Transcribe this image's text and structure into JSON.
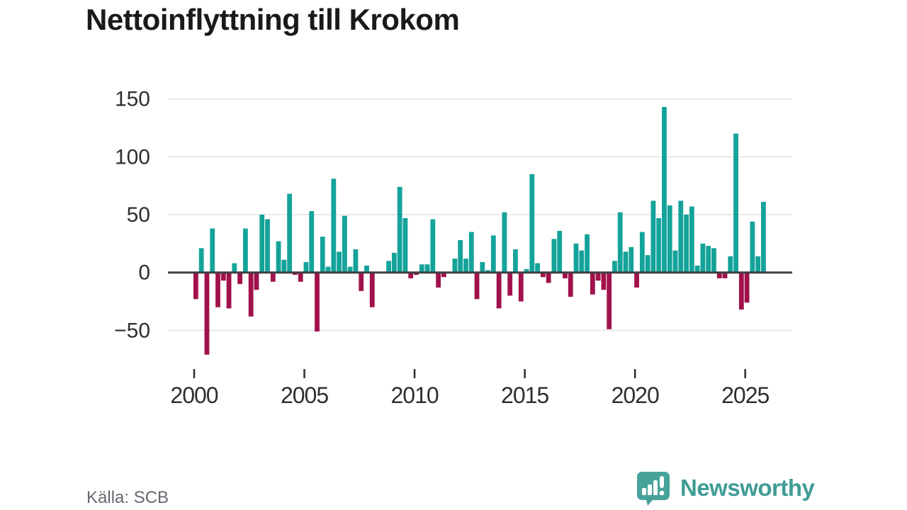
{
  "title": "Nettoinflyttning till Krokom",
  "footer": {
    "source": "Källa: SCB"
  },
  "brand": {
    "name": "Newsworthy"
  },
  "colors": {
    "positive": "#14A39A",
    "negative": "#A1114B",
    "zero_line": "#3F3F3F",
    "gridline": "#E4E4E4",
    "axis_text": "#2E2E2E",
    "title_text": "#1A1A1A",
    "source_text": "#67676F",
    "brand_teal": "#3F9C95"
  },
  "chart_data": {
    "type": "bar",
    "title": "Nettoinflyttning till Krokom",
    "ylabel": "",
    "xlabel": "",
    "frequency": "quarterly",
    "start": "2000 Q1",
    "end": "2025 Q4",
    "grid": "horizontal",
    "ylim": [
      -80,
      155
    ],
    "y_ticks": [
      {
        "v": -50,
        "label": "−50"
      },
      {
        "v": 0,
        "label": "0"
      },
      {
        "v": 50,
        "label": "50"
      },
      {
        "v": 100,
        "label": "100"
      },
      {
        "v": 150,
        "label": "150"
      }
    ],
    "x_tick_years": [
      "2000",
      "2005",
      "2010",
      "2015",
      "2020",
      "2025"
    ],
    "years": [
      {
        "year": "2000",
        "q": [
          -23,
          21,
          -71,
          38
        ]
      },
      {
        "year": "2001",
        "q": [
          -30,
          -7,
          -31,
          8
        ]
      },
      {
        "year": "2002",
        "q": [
          -10,
          38,
          -38,
          -15
        ]
      },
      {
        "year": "2003",
        "q": [
          50,
          46,
          -8,
          27
        ]
      },
      {
        "year": "2004",
        "q": [
          11,
          68,
          -2,
          -8
        ]
      },
      {
        "year": "2005",
        "q": [
          9,
          53,
          -51,
          31
        ]
      },
      {
        "year": "2006",
        "q": [
          5,
          81,
          18,
          49
        ]
      },
      {
        "year": "2007",
        "q": [
          5,
          20,
          -16,
          6
        ]
      },
      {
        "year": "2008",
        "q": [
          -30,
          0,
          0,
          10
        ]
      },
      {
        "year": "2009",
        "q": [
          17,
          74,
          47,
          -5
        ]
      },
      {
        "year": "2010",
        "q": [
          -2,
          7,
          7,
          46
        ]
      },
      {
        "year": "2011",
        "q": [
          -13,
          -4,
          0,
          12
        ]
      },
      {
        "year": "2012",
        "q": [
          28,
          12,
          35,
          -23
        ]
      },
      {
        "year": "2013",
        "q": [
          9,
          2,
          32,
          -31
        ]
      },
      {
        "year": "2014",
        "q": [
          52,
          -20,
          20,
          -25
        ]
      },
      {
        "year": "2015",
        "q": [
          3,
          85,
          8,
          -4
        ]
      },
      {
        "year": "2016",
        "q": [
          -9,
          29,
          36,
          -5
        ]
      },
      {
        "year": "2017",
        "q": [
          -21,
          25,
          19,
          33
        ]
      },
      {
        "year": "2018",
        "q": [
          -19,
          -7,
          -15,
          -49
        ]
      },
      {
        "year": "2019",
        "q": [
          10,
          52,
          18,
          22
        ]
      },
      {
        "year": "2020",
        "q": [
          -13,
          35,
          15,
          62
        ]
      },
      {
        "year": "2021",
        "q": [
          47,
          143,
          58,
          19
        ]
      },
      {
        "year": "2022",
        "q": [
          62,
          50,
          57,
          6
        ]
      },
      {
        "year": "2023",
        "q": [
          25,
          23,
          21,
          -5
        ]
      },
      {
        "year": "2024",
        "q": [
          -5,
          14,
          120,
          -32
        ]
      },
      {
        "year": "2025",
        "q": [
          -26,
          44,
          14,
          61
        ]
      }
    ]
  }
}
